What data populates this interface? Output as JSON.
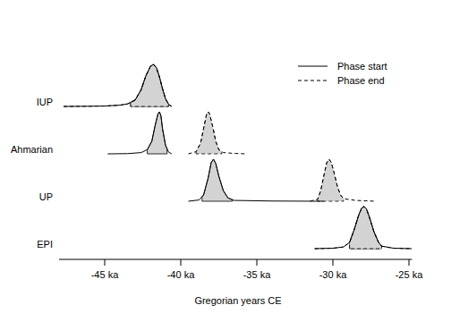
{
  "chart_data": {
    "type": "density",
    "x_label": "Gregorian years CE",
    "categories": [
      "IUP",
      "Ahmarian",
      "UP",
      "EPI"
    ],
    "xlim": [
      -48,
      -24.8
    ],
    "xticks": [
      {
        "value": -45,
        "label": "-45 ka"
      },
      {
        "value": -40,
        "label": "-40 ka"
      },
      {
        "value": -35,
        "label": "-35 ka"
      },
      {
        "value": -30,
        "label": "-30 ka"
      },
      {
        "value": -25,
        "label": "-25 ka"
      }
    ],
    "tick_labels": "x",
    "legend": "top-right",
    "series": [
      {
        "name": "Phase start",
        "color": "#000000",
        "line_style": "solid",
        "distributions": [
          {
            "x": [
              -47.7,
              -46,
              -45,
              -44,
              -43.5,
              -43,
              -42.6,
              -42.3,
              -42.0,
              -41.8,
              -41.6,
              -41.4,
              -41.2,
              -41.0,
              -40.8,
              -40.6
            ],
            "values": [
              0,
              0.005,
              0.01,
              0.03,
              0.06,
              0.15,
              0.4,
              0.72,
              0.95,
              1,
              0.92,
              0.7,
              0.42,
              0.18,
              0.05,
              0
            ],
            "interval": [
              -43.3,
              -40.8
            ]
          },
          {
            "x": [
              -44.8,
              -43.5,
              -42.6,
              -42.2,
              -41.9,
              -41.7,
              -41.5,
              -41.4,
              -41.3,
              -41.2,
              -41.0,
              -40.8,
              -40.6
            ],
            "values": [
              0,
              0.005,
              0.03,
              0.1,
              0.3,
              0.65,
              0.95,
              1,
              0.9,
              0.6,
              0.2,
              0.04,
              0
            ],
            "interval": [
              -42.2,
              -40.9
            ]
          },
          {
            "x": [
              -39.5,
              -38.8,
              -38.5,
              -38.2,
              -38.0,
              -37.85,
              -37.7,
              -37.5,
              -37.2,
              -36.9,
              -36.5,
              -34,
              -30.6
            ],
            "values": [
              0,
              0.03,
              0.15,
              0.55,
              0.92,
              1,
              0.9,
              0.6,
              0.25,
              0.08,
              0.02,
              0.005,
              0
            ],
            "interval": [
              -38.6,
              -36.6
            ]
          },
          {
            "x": [
              -31.2,
              -30,
              -29.3,
              -28.9,
              -28.6,
              -28.3,
              -28.1,
              -27.95,
              -27.8,
              -27.6,
              -27.3,
              -27.0,
              -26.8,
              -26.0,
              -24.8
            ],
            "values": [
              0,
              0.01,
              0.04,
              0.15,
              0.45,
              0.8,
              0.97,
              1,
              0.95,
              0.75,
              0.4,
              0.15,
              0.06,
              0.01,
              0
            ],
            "interval": [
              -28.9,
              -26.8
            ]
          }
        ]
      },
      {
        "name": "Phase end",
        "color": "#000000",
        "line_style": "dashed",
        "distributions": [
          {
            "x": [
              -47.7,
              -46,
              -45,
              -44,
              -43.5,
              -43,
              -42.6,
              -42.3,
              -42.0,
              -41.8,
              -41.6,
              -41.4,
              -41.2,
              -41.0,
              -40.8,
              -40.6
            ],
            "values": [
              0,
              0.005,
              0.01,
              0.03,
              0.06,
              0.15,
              0.4,
              0.72,
              0.95,
              1,
              0.92,
              0.7,
              0.42,
              0.18,
              0.05,
              0
            ],
            "interval": [
              -43.3,
              -40.8
            ]
          },
          {
            "x": [
              -39.5,
              -39.0,
              -38.7,
              -38.5,
              -38.3,
              -38.2,
              -38.1,
              -37.9,
              -37.7,
              -37.5,
              -37.2,
              -36.5,
              -35.7
            ],
            "values": [
              0,
              0.05,
              0.25,
              0.6,
              0.95,
              1,
              0.95,
              0.65,
              0.3,
              0.1,
              0.03,
              0.01,
              0
            ],
            "interval": [
              -39.0,
              -37.3
            ]
          },
          {
            "x": [
              -31.5,
              -31.0,
              -30.8,
              -30.6,
              -30.4,
              -30.25,
              -30.1,
              -29.9,
              -29.7,
              -29.5,
              -29.3,
              -28.5,
              -27.2
            ],
            "values": [
              0,
              0.05,
              0.25,
              0.6,
              0.92,
              1,
              0.92,
              0.65,
              0.35,
              0.15,
              0.06,
              0.02,
              0
            ],
            "interval": [
              -31.0,
              -29.3
            ]
          },
          {
            "x": [
              -31.2,
              -30,
              -29.3,
              -28.9,
              -28.6,
              -28.3,
              -28.1,
              -27.95,
              -27.8,
              -27.6,
              -27.3,
              -27.0,
              -26.8,
              -26.0,
              -24.8
            ],
            "values": [
              0,
              0.01,
              0.04,
              0.15,
              0.45,
              0.8,
              0.97,
              1,
              0.95,
              0.75,
              0.4,
              0.15,
              0.06,
              0.01,
              0
            ],
            "interval": [
              -28.9,
              -26.8
            ]
          }
        ]
      }
    ]
  }
}
